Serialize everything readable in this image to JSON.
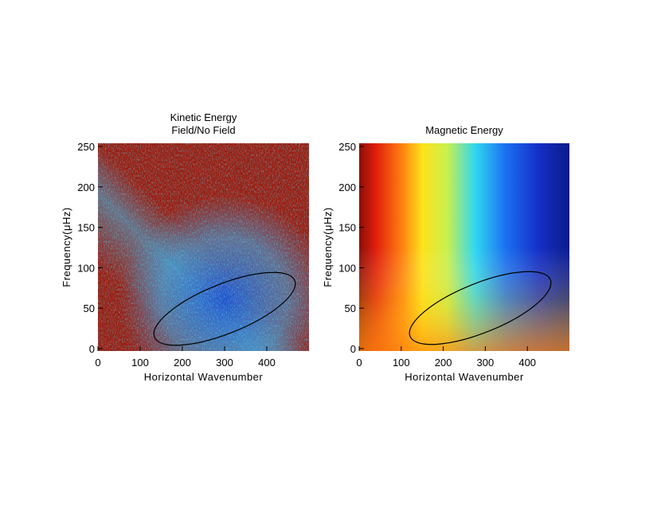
{
  "chart_data": [
    {
      "type": "heatmap",
      "title": [
        "Kinetic Energy",
        "Field/No Field"
      ],
      "xlabel": "Horizontal Wavenumber",
      "ylabel": "Frequency(μHz)",
      "xlim": [
        0,
        500
      ],
      "ylim": [
        -3,
        254
      ],
      "xticks": [
        0,
        100,
        200,
        300,
        400
      ],
      "yticks": [
        0,
        50,
        100,
        150,
        200,
        250
      ]
    },
    {
      "type": "heatmap",
      "title": [
        "Magnetic Energy"
      ],
      "xlabel": "Horizontal Wavenumber",
      "ylabel": "Frequency(μHz)",
      "xlim": [
        0,
        500
      ],
      "ylim": [
        -3,
        254
      ],
      "xticks": [
        0,
        100,
        200,
        300,
        400
      ],
      "yticks": [
        0,
        50,
        100,
        150,
        200,
        250
      ]
    }
  ]
}
